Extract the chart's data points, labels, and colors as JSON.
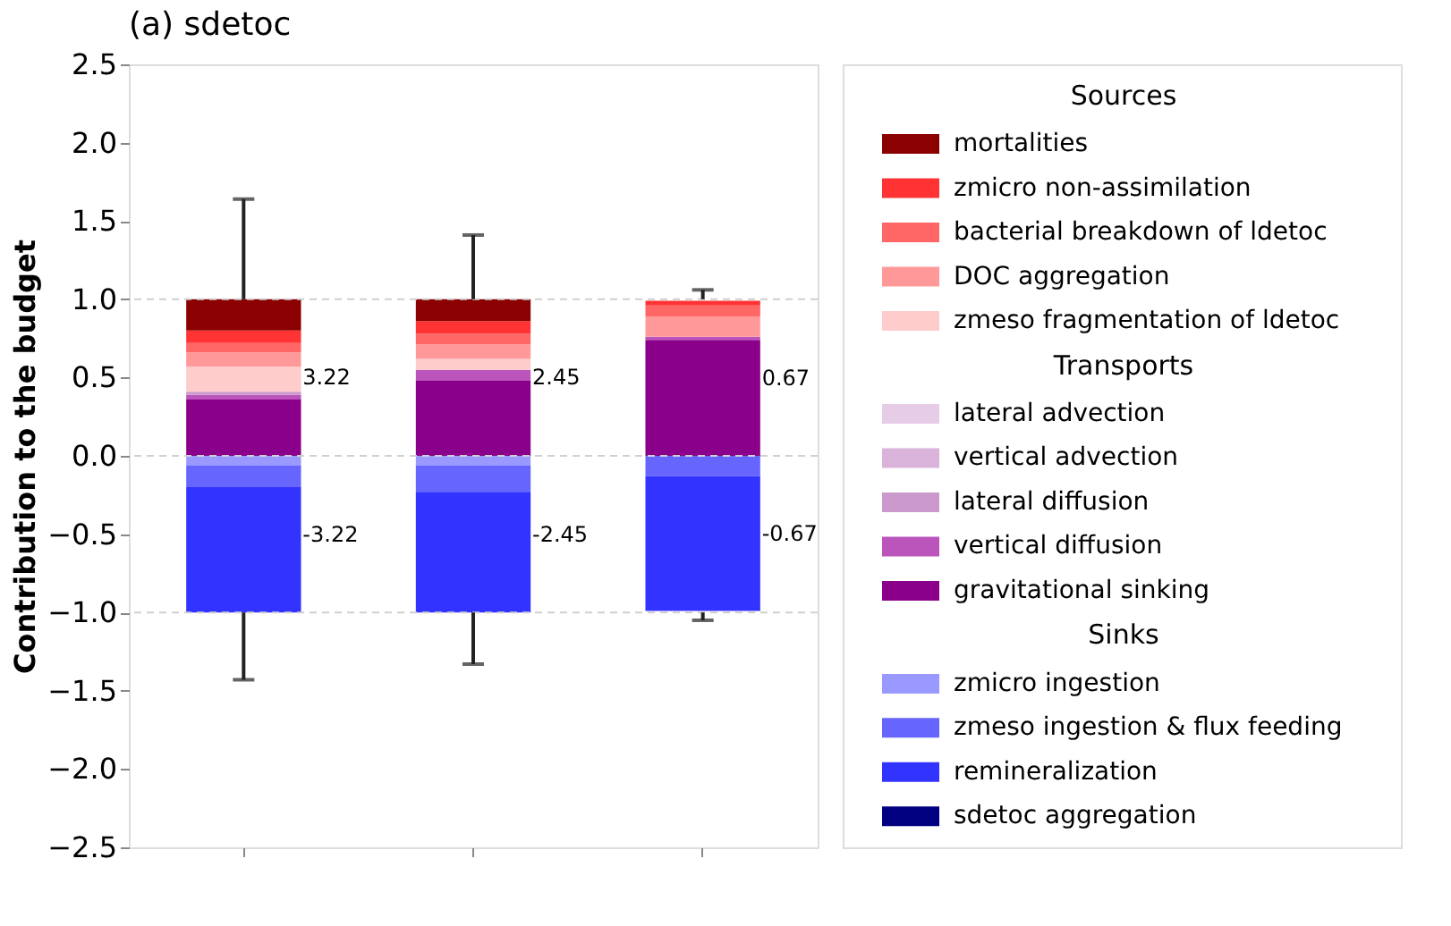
{
  "chart_data": {
    "type": "bar",
    "stacked": true,
    "title": "(a) sdetoc",
    "ylabel": "Contribution to the budget",
    "categories": [
      null,
      null,
      null
    ],
    "series": [
      {
        "name": "gravitational sinking",
        "color": "#8b008b",
        "values": [
          0.36,
          0.48,
          0.74
        ]
      },
      {
        "name": "vertical diffusion",
        "color": "#bb55bb",
        "values": [
          0.03,
          0.07,
          0.02
        ]
      },
      {
        "name": "lateral diffusion",
        "color": "#cc99cc",
        "values": [
          0.02,
          0,
          0
        ]
      },
      {
        "name": "vertical advection",
        "color": "#d9b3d9",
        "values": [
          0,
          0,
          0
        ]
      },
      {
        "name": "lateral advection",
        "color": "#e6cce6",
        "values": [
          0,
          0,
          0
        ]
      },
      {
        "name": "zmeso fragmentation of ldetoc",
        "color": "#ffcccc",
        "values": [
          0.16,
          0.07,
          null
        ]
      },
      {
        "name": "DOC aggregation",
        "color": "#ff9999",
        "values": [
          0.09,
          0.09,
          0.13
        ]
      },
      {
        "name": "bacterial breakdown of ldetoc",
        "color": "#ff6666",
        "values": [
          0.06,
          0.07,
          0.07
        ]
      },
      {
        "name": "zmicro non-assimilation",
        "color": "#ff3333",
        "values": [
          0.08,
          0.08,
          0.03
        ]
      },
      {
        "name": "mortalities",
        "color": "#8b0000",
        "values": [
          0.2,
          0.14,
          0
        ],
        "errors": [
          [
            1.0,
            1.64
          ],
          [
            1.0,
            1.41
          ],
          [
            1.0,
            1.06
          ]
        ]
      },
      {
        "name": "zmicro ingestion",
        "color": "#9999ff",
        "values": [
          -0.06,
          -0.06,
          null
        ]
      },
      {
        "name": "zmeso ingestion & flux feeding",
        "color": "#6666ff",
        "values": [
          -0.14,
          -0.17,
          -0.13
        ]
      },
      {
        "name": "remineralization",
        "color": "#3333ff",
        "values": [
          -0.8,
          -0.77,
          -0.86
        ],
        "errors": [
          [
            -1.43,
            -1.0
          ],
          [
            -1.33,
            -1.0
          ],
          [
            -1.05,
            -1.0
          ]
        ]
      },
      {
        "name": "sdetoc aggregation",
        "color": "#000080",
        "values": [
          0,
          0,
          0
        ]
      }
    ],
    "annotations": [
      "3.22",
      "2.45",
      "0.67",
      "-3.22",
      "-2.45",
      "-0.67",
      "Sources",
      "Transports",
      "Sinks"
    ],
    "ylim": [
      -2.5,
      2.5
    ],
    "yticks": [
      {
        "value": -2.5,
        "label": "−2.5"
      },
      {
        "value": -2.0,
        "label": "−2.0"
      },
      {
        "value": -1.5,
        "label": "−1.5"
      },
      {
        "value": -1.0,
        "label": "−1.0"
      },
      {
        "value": -0.5,
        "label": "−0.5"
      },
      {
        "value": 0,
        "label": "0.0"
      },
      {
        "value": 0.5,
        "label": "0.5"
      },
      {
        "value": 1.0,
        "label": "1.0"
      },
      {
        "value": 1.5,
        "label": "1.5"
      },
      {
        "value": 2.0,
        "label": "2.0"
      },
      {
        "value": 2.5,
        "label": "2.5"
      }
    ],
    "ref_lines": [
      {
        "axis": "y",
        "value": 1.0,
        "color": "#d0d0d0",
        "line_style": "dashed"
      },
      {
        "axis": "y",
        "value": 0,
        "color": "#d0d0d0",
        "line_style": "dashed"
      },
      {
        "axis": "y",
        "value": -1.0,
        "color": "#d0d0d0",
        "line_style": "dashed"
      }
    ],
    "grid": false,
    "legend": "right",
    "tick_labels": "y"
  }
}
